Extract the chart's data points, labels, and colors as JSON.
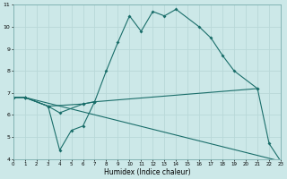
{
  "xlabel": "Humidex (Indice chaleur)",
  "bg_color": "#cce8e8",
  "grid_color": "#b8d8d8",
  "line_color": "#1a6e6a",
  "x_min": 0,
  "x_max": 23,
  "y_min": 4,
  "y_max": 11,
  "line1_x": [
    0,
    1,
    3,
    6,
    7,
    8,
    9,
    10,
    11,
    12,
    13,
    14,
    16,
    17,
    18,
    19,
    21
  ],
  "line1_y": [
    6.8,
    6.8,
    6.4,
    6.5,
    6.6,
    8.0,
    9.3,
    10.5,
    9.8,
    10.7,
    10.5,
    10.8,
    10.0,
    9.5,
    8.7,
    8.0,
    7.2
  ],
  "line2_x": [
    0,
    1,
    3,
    4,
    6,
    7,
    21,
    22,
    23
  ],
  "line2_y": [
    6.8,
    6.8,
    6.4,
    6.1,
    6.5,
    6.6,
    7.2,
    4.7,
    3.9
  ],
  "line3_x": [
    0,
    1,
    23
  ],
  "line3_y": [
    6.8,
    6.8,
    3.9
  ],
  "line4_x": [
    0,
    1,
    3,
    4,
    5,
    6,
    7
  ],
  "line4_y": [
    6.8,
    6.8,
    6.4,
    4.4,
    5.3,
    5.5,
    6.6
  ],
  "yticks": [
    4,
    5,
    6,
    7,
    8,
    9,
    10,
    11
  ],
  "xticks": [
    0,
    1,
    2,
    3,
    4,
    5,
    6,
    7,
    8,
    9,
    10,
    11,
    12,
    13,
    14,
    15,
    16,
    17,
    18,
    19,
    20,
    21,
    22,
    23
  ]
}
